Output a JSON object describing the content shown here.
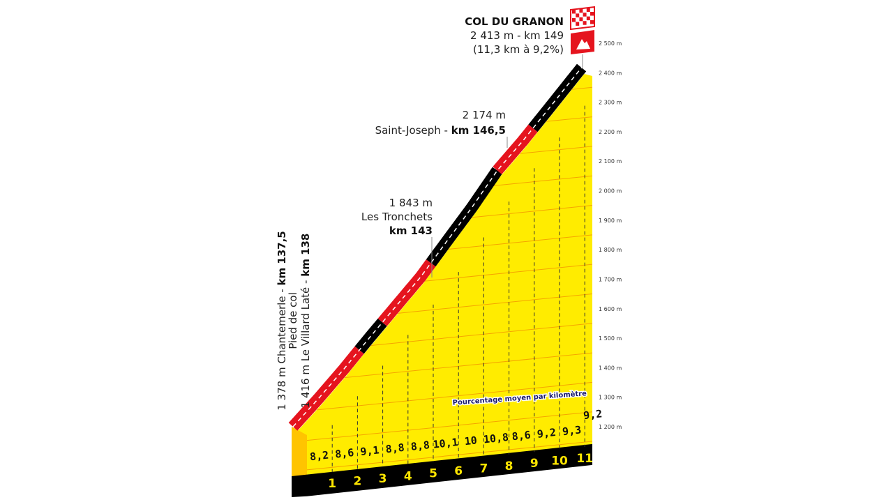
{
  "chart_data": {
    "type": "area",
    "title": "COL DU GRANON",
    "summit": {
      "line1": "2 413 m - km 149",
      "line2": "(11,3 km à 9,2%)"
    },
    "y_unit": "m",
    "ylim": [
      1200,
      2500
    ],
    "y_ticks": [
      "1 200 m",
      "1 300 m",
      "1 400 m",
      "1 500 m",
      "1 600 m",
      "1 700 m",
      "1 800 m",
      "1 900 m",
      "2 000 m",
      "2 100 m",
      "2 200 m",
      "2 300 m",
      "2 400 m",
      "2 500 m"
    ],
    "y_tick_values": [
      1200,
      1300,
      1400,
      1500,
      1600,
      1700,
      1800,
      1900,
      2000,
      2100,
      2200,
      2300,
      2400,
      2500
    ],
    "start_elevation": 1378,
    "total_km": 11.3,
    "km_markers": [
      "1",
      "2",
      "3",
      "4",
      "5",
      "6",
      "7",
      "8",
      "9",
      "10",
      "11"
    ],
    "gradients_label": "Pourcentage moyen par kilomètre",
    "gradients": [
      8.2,
      8.6,
      9.1,
      8.8,
      8.8,
      10.1,
      10,
      10.8,
      8.6,
      9.2,
      9.3,
      9.2
    ],
    "gradient_labels": [
      "8,2",
      "8,6",
      "9,1",
      "8,8",
      "8,8",
      "10,1",
      "10",
      "10,8",
      "8,6",
      "9,2",
      "9,3",
      "9,2"
    ],
    "road_segments": [
      {
        "from_km": 0,
        "to_km": 2.6,
        "color": "#e5141e"
      },
      {
        "from_km": 2.6,
        "to_km": 3.5,
        "color": "#000000"
      },
      {
        "from_km": 3.5,
        "to_km": 5.4,
        "color": "#e5141e"
      },
      {
        "from_km": 5.4,
        "to_km": 8.0,
        "color": "#000000"
      },
      {
        "from_km": 8.0,
        "to_km": 9.4,
        "color": "#e5141e"
      },
      {
        "from_km": 9.4,
        "to_km": 11.3,
        "color": "#000000"
      }
    ],
    "annotations": {
      "start": {
        "line1_plain": "1 378 m Chantemerle - ",
        "line1_bold": "km 137,5",
        "line2": "Pied de col",
        "line3_plain": "1 416 m Le Villard Laté - ",
        "line3_bold": "km 138"
      },
      "tronchets": {
        "elev": "1 843 m",
        "name": "Les Tronchets",
        "km": "km 143"
      },
      "saint_joseph": {
        "elev": "2 174 m",
        "name": "Saint-Joseph - ",
        "km": "km 146,5"
      }
    },
    "colors": {
      "fill": "#ffec00",
      "grid": "#f5a400",
      "red": "#e5141e",
      "black": "#000000",
      "side": "#ffc400",
      "note": "#1a1a6e"
    },
    "icons": [
      "checkered-flag-icon",
      "mountain-summit-icon"
    ]
  }
}
